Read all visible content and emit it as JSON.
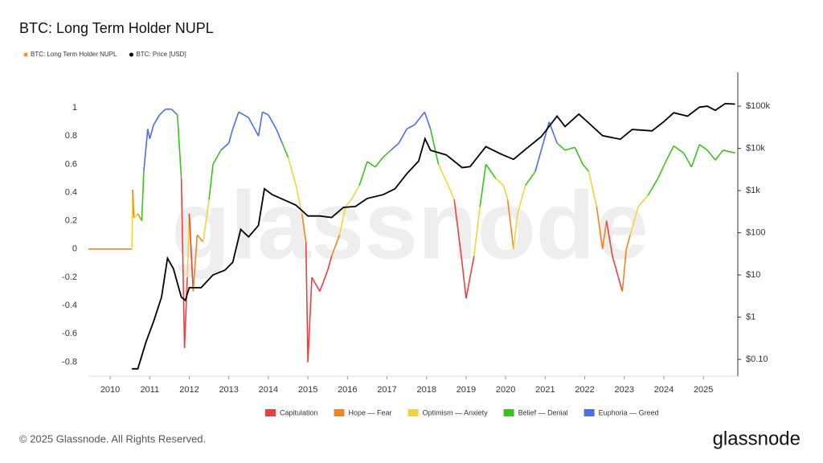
{
  "chart_data": {
    "type": "line",
    "title": "BTC: Long Term Holder NUPL",
    "watermark": "glassnode",
    "footer": "© 2025 Glassnode. All Rights Reserved.",
    "logo": "glassnode",
    "xlim": [
      2009.45,
      2025.87
    ],
    "xticks": [
      2010,
      2011,
      2012,
      2013,
      2014,
      2015,
      2016,
      2017,
      2018,
      2019,
      2020,
      2021,
      2022,
      2023,
      2024,
      2025
    ],
    "ylim": [
      -0.9,
      1.08
    ],
    "yticks": [
      -0.8,
      -0.6,
      -0.4,
      -0.2,
      0,
      0.2,
      0.4,
      0.6,
      0.8,
      1
    ],
    "y2lim": [
      0.04,
      170000
    ],
    "y2log": true,
    "y2ticks": [
      {
        "value": 0.1,
        "label": "$0.10"
      },
      {
        "value": 1,
        "label": "$1"
      },
      {
        "value": 10,
        "label": "$10"
      },
      {
        "value": 100,
        "label": "$100"
      },
      {
        "value": 1000,
        "label": "$1k"
      },
      {
        "value": 10000,
        "label": "$10k"
      },
      {
        "value": 100000,
        "label": "$100k"
      }
    ],
    "zones": [
      {
        "name": "Capitulation",
        "color": "#e8413f",
        "max": 0
      },
      {
        "name": "Hope — Fear",
        "color": "#f0861c",
        "max": 0.25
      },
      {
        "name": "Optimism — Anxiety",
        "color": "#f2d43a",
        "max": 0.5
      },
      {
        "name": "Belief — Denial",
        "color": "#3cc31b",
        "max": 0.75
      },
      {
        "name": "Euphoria — Greed",
        "color": "#4a6fe0"
      }
    ],
    "series": [
      {
        "name": "BTC: Long Term Holder NUPL",
        "color": "#f7931a",
        "x": [
          2009.45,
          2010.55,
          2010.57,
          2010.6,
          2010.7,
          2010.8,
          2010.85,
          2010.95,
          2011.0,
          2011.1,
          2011.25,
          2011.4,
          2011.55,
          2011.7,
          2011.8,
          2011.88,
          2011.95,
          2012.0,
          2012.1,
          2012.2,
          2012.35,
          2012.5,
          2012.6,
          2012.8,
          2013.0,
          2013.1,
          2013.25,
          2013.5,
          2013.75,
          2013.85,
          2014.0,
          2014.2,
          2014.35,
          2014.5,
          2014.7,
          2014.85,
          2014.95,
          2015.0,
          2015.1,
          2015.3,
          2015.5,
          2015.6,
          2015.8,
          2015.95,
          2016.1,
          2016.3,
          2016.5,
          2016.7,
          2016.9,
          2017.1,
          2017.3,
          2017.5,
          2017.7,
          2017.95,
          2018.1,
          2018.3,
          2018.5,
          2018.7,
          2018.9,
          2019.0,
          2019.2,
          2019.35,
          2019.5,
          2019.75,
          2019.95,
          2020.05,
          2020.2,
          2020.3,
          2020.5,
          2020.75,
          2020.95,
          2021.1,
          2021.3,
          2021.5,
          2021.75,
          2021.95,
          2022.1,
          2022.3,
          2022.45,
          2022.55,
          2022.7,
          2022.85,
          2022.95,
          2023.05,
          2023.15,
          2023.35,
          2023.6,
          2023.85,
          2024.05,
          2024.25,
          2024.5,
          2024.7,
          2024.9,
          2025.1,
          2025.3,
          2025.5,
          2025.8
        ],
        "values": [
          0,
          0,
          0.42,
          0.22,
          0.25,
          0.2,
          0.55,
          0.85,
          0.78,
          0.88,
          0.95,
          0.99,
          0.99,
          0.95,
          0.5,
          -0.7,
          -0.2,
          0.25,
          -0.3,
          0.1,
          0.05,
          0.35,
          0.6,
          0.7,
          0.75,
          0.85,
          0.97,
          0.93,
          0.8,
          0.97,
          0.95,
          0.85,
          0.75,
          0.65,
          0.45,
          0.25,
          0.05,
          -0.8,
          -0.2,
          -0.3,
          -0.15,
          -0.05,
          0.1,
          0.3,
          0.35,
          0.45,
          0.62,
          0.58,
          0.65,
          0.7,
          0.75,
          0.85,
          0.88,
          0.97,
          0.85,
          0.6,
          0.48,
          0.35,
          -0.1,
          -0.35,
          -0.05,
          0.3,
          0.6,
          0.5,
          0.45,
          0.35,
          0,
          0.25,
          0.45,
          0.55,
          0.75,
          0.9,
          0.75,
          0.7,
          0.72,
          0.6,
          0.55,
          0.3,
          0,
          0.2,
          -0.05,
          -0.2,
          -0.3,
          0,
          0.1,
          0.3,
          0.38,
          0.5,
          0.62,
          0.73,
          0.68,
          0.58,
          0.74,
          0.7,
          0.63,
          0.7,
          0.68
        ]
      },
      {
        "name": "BTC: Price [USD]",
        "color": "#000000",
        "axis": "y2",
        "x": [
          2010.55,
          2010.7,
          2010.9,
          2011.1,
          2011.3,
          2011.45,
          2011.6,
          2011.8,
          2011.9,
          2012.0,
          2012.3,
          2012.6,
          2012.9,
          2013.1,
          2013.3,
          2013.5,
          2013.75,
          2013.9,
          2014.1,
          2014.4,
          2014.7,
          2015.0,
          2015.3,
          2015.6,
          2015.9,
          2016.2,
          2016.5,
          2016.9,
          2017.2,
          2017.5,
          2017.8,
          2017.96,
          2018.1,
          2018.5,
          2018.9,
          2019.1,
          2019.5,
          2019.9,
          2020.2,
          2020.5,
          2020.9,
          2021.3,
          2021.5,
          2021.85,
          2022.1,
          2022.45,
          2022.9,
          2023.2,
          2023.7,
          2024.0,
          2024.25,
          2024.6,
          2024.9,
          2025.1,
          2025.3,
          2025.55,
          2025.8
        ],
        "values": [
          0.06,
          0.06,
          0.25,
          0.8,
          3,
          25,
          14,
          3,
          2.5,
          5,
          5,
          10,
          13,
          20,
          120,
          80,
          150,
          1100,
          800,
          600,
          450,
          250,
          250,
          230,
          400,
          420,
          650,
          800,
          1100,
          2500,
          5000,
          17000,
          9000,
          7000,
          3500,
          3700,
          11000,
          7200,
          5500,
          9500,
          19000,
          58000,
          33000,
          65000,
          40000,
          20000,
          16500,
          28000,
          26000,
          43000,
          70000,
          58000,
          95000,
          100000,
          80000,
          115000,
          112000
        ]
      }
    ]
  }
}
